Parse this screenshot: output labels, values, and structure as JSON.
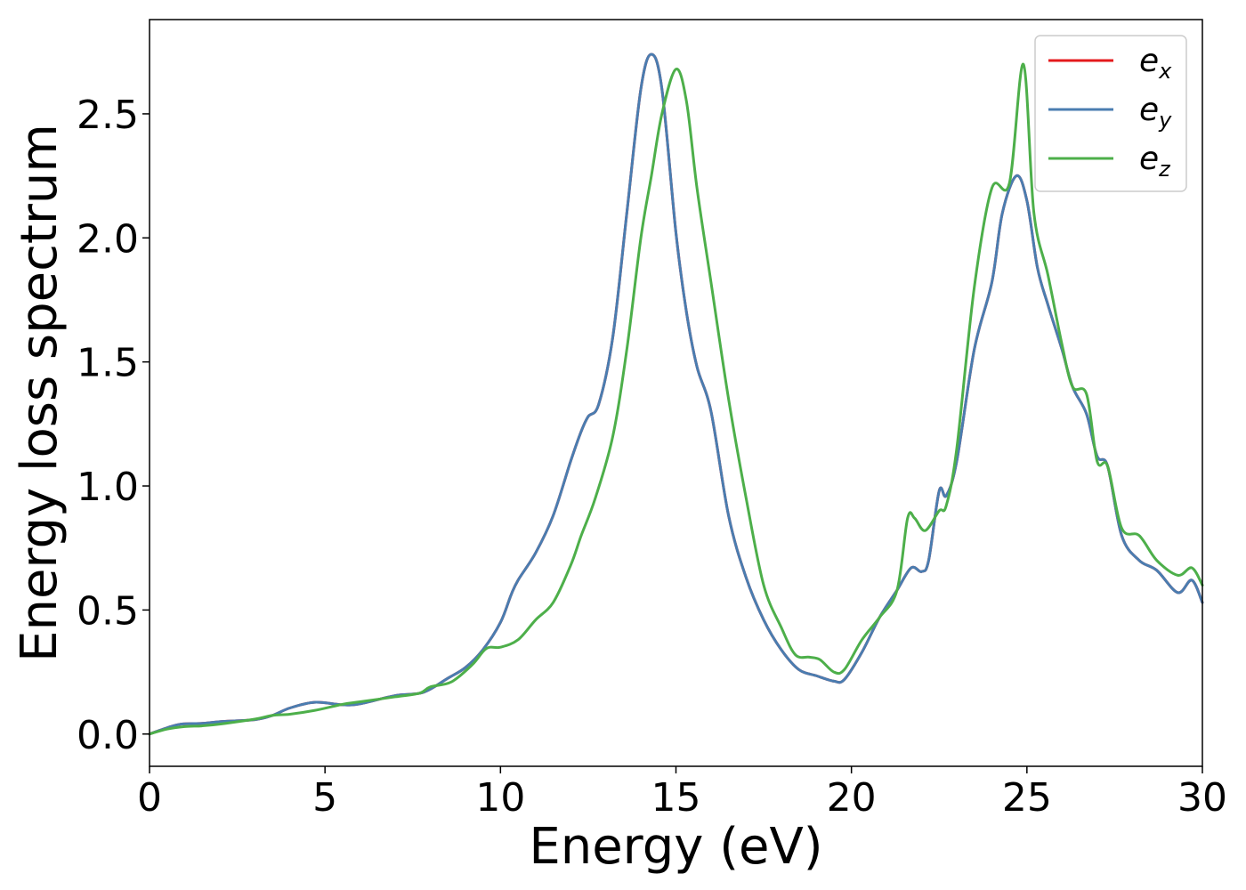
{
  "chart_data": {
    "type": "line",
    "xlabel": "Energy (eV)",
    "ylabel": "Energy loss spectrum",
    "xlim": [
      0,
      30
    ],
    "ylim": [
      -0.13,
      2.88
    ],
    "xticks": [
      0,
      5,
      10,
      15,
      20,
      25,
      30
    ],
    "xtick_labels": [
      "0",
      "5",
      "10",
      "15",
      "20",
      "25",
      "30"
    ],
    "yticks": [
      0.0,
      0.5,
      1.0,
      1.5,
      2.0,
      2.5
    ],
    "ytick_labels": [
      "0.0",
      "0.5",
      "1.0",
      "1.5",
      "2.0",
      "2.5"
    ],
    "grid": false,
    "legend_position": "top-right",
    "series": [
      {
        "name": "e_x",
        "legend_base": "e",
        "legend_sub": "x",
        "color": "#e41a1c",
        "points": [
          [
            0,
            0.0
          ],
          [
            0.5,
            0.025
          ],
          [
            0.9,
            0.04
          ],
          [
            1.5,
            0.043
          ],
          [
            2,
            0.05
          ],
          [
            3,
            0.058
          ],
          [
            3.5,
            0.075
          ],
          [
            4,
            0.105
          ],
          [
            4.7,
            0.128
          ],
          [
            5.5,
            0.118
          ],
          [
            6,
            0.122
          ],
          [
            7,
            0.155
          ],
          [
            7.8,
            0.168
          ],
          [
            8.5,
            0.225
          ],
          [
            9,
            0.268
          ],
          [
            9.5,
            0.34
          ],
          [
            10,
            0.45
          ],
          [
            10.3,
            0.56
          ],
          [
            10.5,
            0.62
          ],
          [
            11,
            0.73
          ],
          [
            11.5,
            0.88
          ],
          [
            12,
            1.1
          ],
          [
            12.3,
            1.22
          ],
          [
            12.5,
            1.28
          ],
          [
            12.8,
            1.33
          ],
          [
            13.2,
            1.6
          ],
          [
            13.6,
            2.1
          ],
          [
            14,
            2.6
          ],
          [
            14.3,
            2.74
          ],
          [
            14.6,
            2.6
          ],
          [
            15,
            2.02
          ],
          [
            15.3,
            1.7
          ],
          [
            15.6,
            1.48
          ],
          [
            16,
            1.3
          ],
          [
            16.5,
            0.88
          ],
          [
            17,
            0.63
          ],
          [
            17.5,
            0.46
          ],
          [
            18,
            0.34
          ],
          [
            18.5,
            0.26
          ],
          [
            19,
            0.235
          ],
          [
            19.5,
            0.213
          ],
          [
            19.8,
            0.22
          ],
          [
            20.3,
            0.33
          ],
          [
            20.8,
            0.47
          ],
          [
            21.3,
            0.58
          ],
          [
            21.7,
            0.67
          ],
          [
            22,
            0.655
          ],
          [
            22.2,
            0.7
          ],
          [
            22.5,
            0.98
          ],
          [
            22.7,
            0.96
          ],
          [
            23,
            1.1
          ],
          [
            23.5,
            1.55
          ],
          [
            24,
            1.82
          ],
          [
            24.3,
            2.1
          ],
          [
            24.7,
            2.25
          ],
          [
            25,
            2.15
          ],
          [
            25.3,
            1.88
          ],
          [
            25.6,
            1.73
          ],
          [
            26,
            1.55
          ],
          [
            26.3,
            1.4
          ],
          [
            26.7,
            1.29
          ],
          [
            27,
            1.12
          ],
          [
            27.3,
            1.08
          ],
          [
            27.7,
            0.8
          ],
          [
            28.2,
            0.7
          ],
          [
            28.7,
            0.66
          ],
          [
            29.3,
            0.57
          ],
          [
            29.7,
            0.62
          ],
          [
            30,
            0.53
          ]
        ]
      },
      {
        "name": "e_y",
        "legend_base": "e",
        "legend_sub": "y",
        "color": "#4a7db0",
        "points": [
          [
            0,
            0.0
          ],
          [
            0.5,
            0.025
          ],
          [
            0.9,
            0.04
          ],
          [
            1.5,
            0.043
          ],
          [
            2,
            0.05
          ],
          [
            3,
            0.058
          ],
          [
            3.5,
            0.075
          ],
          [
            4,
            0.105
          ],
          [
            4.7,
            0.128
          ],
          [
            5.5,
            0.118
          ],
          [
            6,
            0.122
          ],
          [
            7,
            0.155
          ],
          [
            7.8,
            0.168
          ],
          [
            8.5,
            0.225
          ],
          [
            9,
            0.268
          ],
          [
            9.5,
            0.34
          ],
          [
            10,
            0.45
          ],
          [
            10.3,
            0.56
          ],
          [
            10.5,
            0.62
          ],
          [
            11,
            0.73
          ],
          [
            11.5,
            0.88
          ],
          [
            12,
            1.1
          ],
          [
            12.3,
            1.22
          ],
          [
            12.5,
            1.28
          ],
          [
            12.8,
            1.33
          ],
          [
            13.2,
            1.6
          ],
          [
            13.6,
            2.1
          ],
          [
            14,
            2.6
          ],
          [
            14.3,
            2.74
          ],
          [
            14.6,
            2.6
          ],
          [
            15,
            2.02
          ],
          [
            15.3,
            1.7
          ],
          [
            15.6,
            1.48
          ],
          [
            16,
            1.3
          ],
          [
            16.5,
            0.88
          ],
          [
            17,
            0.63
          ],
          [
            17.5,
            0.46
          ],
          [
            18,
            0.34
          ],
          [
            18.5,
            0.26
          ],
          [
            19,
            0.235
          ],
          [
            19.5,
            0.213
          ],
          [
            19.8,
            0.22
          ],
          [
            20.3,
            0.33
          ],
          [
            20.8,
            0.47
          ],
          [
            21.3,
            0.58
          ],
          [
            21.7,
            0.67
          ],
          [
            22,
            0.655
          ],
          [
            22.2,
            0.7
          ],
          [
            22.5,
            0.98
          ],
          [
            22.7,
            0.96
          ],
          [
            23,
            1.1
          ],
          [
            23.5,
            1.55
          ],
          [
            24,
            1.82
          ],
          [
            24.3,
            2.1
          ],
          [
            24.7,
            2.25
          ],
          [
            25,
            2.15
          ],
          [
            25.3,
            1.88
          ],
          [
            25.6,
            1.73
          ],
          [
            26,
            1.55
          ],
          [
            26.3,
            1.4
          ],
          [
            26.7,
            1.29
          ],
          [
            27,
            1.12
          ],
          [
            27.3,
            1.08
          ],
          [
            27.7,
            0.8
          ],
          [
            28.2,
            0.7
          ],
          [
            28.7,
            0.66
          ],
          [
            29.3,
            0.57
          ],
          [
            29.7,
            0.62
          ],
          [
            30,
            0.53
          ]
        ]
      },
      {
        "name": "e_z",
        "legend_base": "e",
        "legend_sub": "z",
        "color": "#4daf4a",
        "points": [
          [
            0,
            0.0
          ],
          [
            0.5,
            0.02
          ],
          [
            1,
            0.03
          ],
          [
            1.5,
            0.033
          ],
          [
            2,
            0.04
          ],
          [
            3,
            0.06
          ],
          [
            3.5,
            0.075
          ],
          [
            4,
            0.08
          ],
          [
            4.7,
            0.095
          ],
          [
            5.5,
            0.12
          ],
          [
            6,
            0.13
          ],
          [
            7,
            0.15
          ],
          [
            7.7,
            0.165
          ],
          [
            8,
            0.19
          ],
          [
            8.6,
            0.21
          ],
          [
            9.2,
            0.28
          ],
          [
            9.6,
            0.345
          ],
          [
            10,
            0.35
          ],
          [
            10.5,
            0.38
          ],
          [
            11,
            0.46
          ],
          [
            11.5,
            0.53
          ],
          [
            12,
            0.68
          ],
          [
            12.3,
            0.8
          ],
          [
            12.7,
            0.95
          ],
          [
            13.2,
            1.2
          ],
          [
            13.6,
            1.55
          ],
          [
            14,
            2.0
          ],
          [
            14.3,
            2.25
          ],
          [
            14.6,
            2.5
          ],
          [
            15,
            2.68
          ],
          [
            15.3,
            2.55
          ],
          [
            15.6,
            2.2
          ],
          [
            16,
            1.82
          ],
          [
            16.5,
            1.35
          ],
          [
            17,
            0.95
          ],
          [
            17.5,
            0.6
          ],
          [
            18,
            0.43
          ],
          [
            18.4,
            0.32
          ],
          [
            18.8,
            0.31
          ],
          [
            19.1,
            0.3
          ],
          [
            19.5,
            0.25
          ],
          [
            19.8,
            0.26
          ],
          [
            20.3,
            0.38
          ],
          [
            20.8,
            0.47
          ],
          [
            21.3,
            0.58
          ],
          [
            21.6,
            0.87
          ],
          [
            21.8,
            0.87
          ],
          [
            22.1,
            0.82
          ],
          [
            22.5,
            0.9
          ],
          [
            22.7,
            0.92
          ],
          [
            23,
            1.15
          ],
          [
            23.5,
            1.8
          ],
          [
            24,
            2.2
          ],
          [
            24.5,
            2.22
          ],
          [
            24.9,
            2.7
          ],
          [
            25.2,
            2.1
          ],
          [
            25.6,
            1.85
          ],
          [
            26,
            1.57
          ],
          [
            26.3,
            1.4
          ],
          [
            26.7,
            1.37
          ],
          [
            27,
            1.1
          ],
          [
            27.3,
            1.08
          ],
          [
            27.7,
            0.83
          ],
          [
            28.2,
            0.8
          ],
          [
            28.7,
            0.7
          ],
          [
            29.3,
            0.64
          ],
          [
            29.7,
            0.67
          ],
          [
            30,
            0.6
          ]
        ]
      }
    ]
  }
}
